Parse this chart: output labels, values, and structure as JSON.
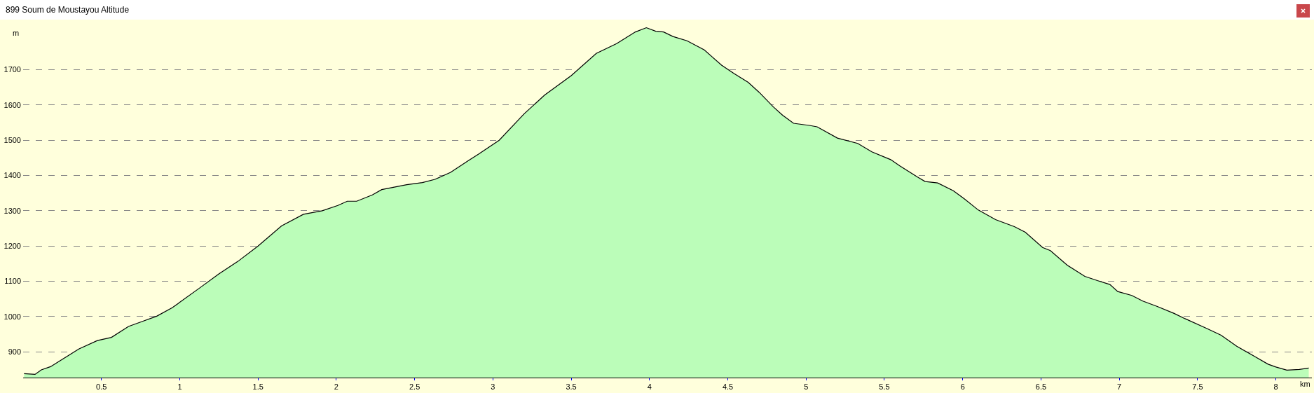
{
  "chart_data": {
    "type": "area",
    "title": "899 Soum de Moustayou Altitude",
    "xlabel": "km",
    "ylabel": "m",
    "x": [
      0.006,
      0.076,
      0.116,
      0.175,
      0.255,
      0.355,
      0.474,
      0.564,
      0.673,
      0.753,
      0.853,
      0.952,
      1.13,
      1.25,
      1.37,
      1.5,
      1.65,
      1.79,
      1.91,
      2.01,
      2.07,
      2.13,
      2.23,
      2.29,
      2.37,
      2.45,
      2.55,
      2.63,
      2.73,
      2.84,
      2.91,
      3.04,
      3.2,
      3.33,
      3.5,
      3.66,
      3.79,
      3.91,
      3.98,
      4.04,
      4.09,
      4.15,
      4.24,
      4.35,
      4.46,
      4.54,
      4.63,
      4.7,
      4.79,
      4.85,
      4.92,
      5.02,
      5.07,
      5.2,
      5.33,
      5.42,
      5.54,
      5.6,
      5.71,
      5.76,
      5.84,
      5.94,
      6.01,
      6.1,
      6.21,
      6.33,
      6.4,
      6.51,
      6.56,
      6.67,
      6.78,
      6.86,
      6.94,
      6.99,
      7.08,
      7.15,
      7.24,
      7.35,
      7.42,
      7.56,
      7.65,
      7.75,
      7.86,
      7.95,
      8.0,
      8.07,
      8.15,
      8.21
    ],
    "series": [
      {
        "color": "#bbfdb9",
        "values": [
          838,
          836,
          849,
          858,
          880,
          908,
          932,
          941,
          972,
          985,
          1001,
          1025,
          1082,
          1121,
          1156,
          1200,
          1257,
          1290,
          1300,
          1315,
          1327,
          1327,
          1345,
          1360,
          1367,
          1374,
          1380,
          1389,
          1409,
          1441,
          1461,
          1500,
          1575,
          1628,
          1683,
          1746,
          1774,
          1807,
          1819,
          1809,
          1807,
          1794,
          1782,
          1756,
          1713,
          1689,
          1664,
          1636,
          1595,
          1571,
          1548,
          1542,
          1538,
          1506,
          1491,
          1467,
          1445,
          1427,
          1396,
          1383,
          1379,
          1357,
          1334,
          1302,
          1275,
          1255,
          1239,
          1196,
          1187,
          1145,
          1114,
          1102,
          1091,
          1071,
          1060,
          1044,
          1029,
          1009,
          994,
          966,
          947,
          916,
          888,
          865,
          857,
          848,
          850,
          854
        ]
      }
    ],
    "xlim": [
      0,
      8.23
    ],
    "ylim": [
      827,
      1836
    ],
    "xticks": [
      0.5,
      1,
      1.5,
      2,
      2.5,
      3,
      3.5,
      4,
      4.5,
      5,
      5.5,
      6,
      6.5,
      7,
      7.5,
      8
    ],
    "yticks": [
      900,
      1000,
      1100,
      1200,
      1300,
      1400,
      1500,
      1600,
      1700
    ],
    "grid": "y",
    "marker": "none",
    "line_style": "solid"
  }
}
